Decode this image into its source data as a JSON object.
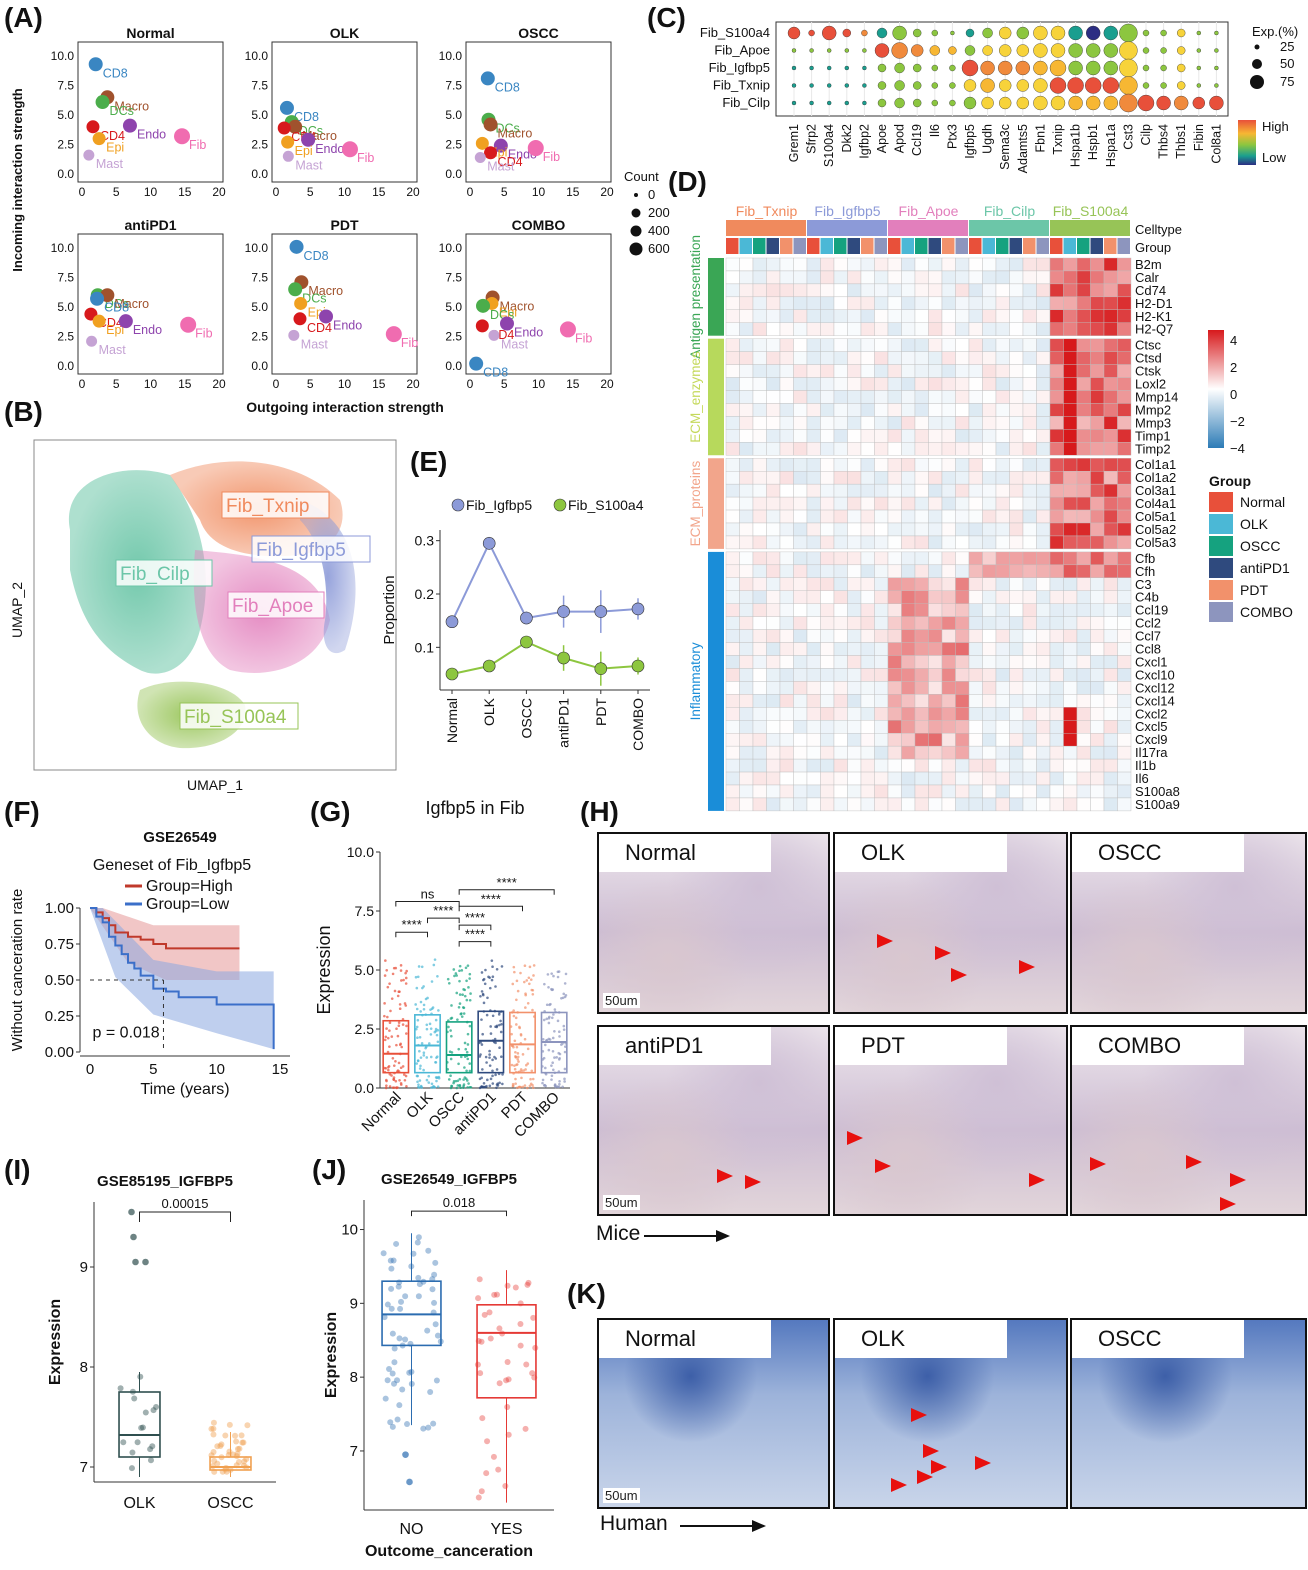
{
  "panel_labels": {
    "A": "(A)",
    "B": "(B)",
    "C": "(C)",
    "D": "(D)",
    "E": "(E)",
    "F": "(F)",
    "G": "(G)",
    "H": "(H)",
    "I": "(I)",
    "J": "(J)",
    "K": "(K)"
  },
  "colors": {
    "cd8": "#3a86c2",
    "macro": "#a0522d",
    "dcs": "#4bad4b",
    "cd4": "#d7191c",
    "epi": "#f0a020",
    "endo": "#8e44ad",
    "fib": "#f06cb0",
    "mast": "#c5a3d4",
    "fib_txnip": "#f08a5d",
    "fib_igfbp5": "#8c9ad8",
    "fib_apoe": "#e27fbc",
    "fib_cilp": "#6cc6a8",
    "fib_s100a4": "#97c457",
    "g_normal": "#e8503a",
    "g_olk": "#4bb8d6",
    "g_oscc": "#15a27f",
    "g_antipd1": "#2f4a7e",
    "g_pdt": "#f2916b",
    "g_combo": "#8d95be"
  },
  "panelA": {
    "xlabel": "Outgoing interaction strength",
    "ylabel": "Incoming interaction strength",
    "xticks": [
      "0",
      "5",
      "10",
      "15",
      "20"
    ],
    "yticks": [
      "0.0",
      "2.5",
      "5.0",
      "7.5",
      "10.0"
    ],
    "legend_title": "Count",
    "legend_values": [
      "0",
      "200",
      "400",
      "600"
    ],
    "chart_data": [
      {
        "type": "scatter",
        "title": "Normal",
        "points": [
          [
            "CD8",
            2.0,
            9.3
          ],
          [
            "Macro",
            3.7,
            6.5
          ],
          [
            "DCs",
            3.0,
            6.1
          ],
          [
            "CD4",
            1.6,
            4.0
          ],
          [
            "Endo",
            7.0,
            4.1
          ],
          [
            "Epi",
            2.5,
            3.0
          ],
          [
            "Fib",
            14.6,
            3.2
          ],
          [
            "Mast",
            1.0,
            1.6
          ]
        ]
      },
      {
        "type": "scatter",
        "title": "OLK",
        "points": [
          [
            "CD8",
            1.6,
            5.6
          ],
          [
            "DCs",
            2.3,
            4.4
          ],
          [
            "Macro",
            2.8,
            4.0
          ],
          [
            "CD4",
            1.2,
            3.9
          ],
          [
            "Endo",
            4.7,
            2.9
          ],
          [
            "Epi",
            1.7,
            2.7
          ],
          [
            "Fib",
            10.8,
            2.1
          ],
          [
            "Mast",
            1.8,
            1.5
          ]
        ]
      },
      {
        "type": "scatter",
        "title": "OSCC",
        "points": [
          [
            "CD8",
            2.6,
            8.1
          ],
          [
            "DCs",
            2.7,
            4.6
          ],
          [
            "Macro",
            3.0,
            4.2
          ],
          [
            "Endo",
            4.5,
            2.4
          ],
          [
            "Epi",
            1.8,
            2.6
          ],
          [
            "Fib",
            9.6,
            2.2
          ],
          [
            "CD4",
            3.0,
            1.8
          ],
          [
            "Mast",
            1.5,
            1.4
          ]
        ]
      },
      {
        "type": "scatter",
        "title": "antiPD1",
        "points": [
          [
            "DCs",
            2.3,
            6.0
          ],
          [
            "Macro",
            3.7,
            6.0
          ],
          [
            "CD8",
            2.2,
            5.7
          ],
          [
            "CD4",
            1.3,
            4.4
          ],
          [
            "Epi",
            2.5,
            3.8
          ],
          [
            "Endo",
            6.4,
            3.8
          ],
          [
            "Fib",
            15.5,
            3.5
          ],
          [
            "Mast",
            1.4,
            2.1
          ]
        ]
      },
      {
        "type": "scatter",
        "title": "PDT",
        "points": [
          [
            "CD8",
            3.0,
            10.1
          ],
          [
            "Macro",
            3.7,
            7.1
          ],
          [
            "DCs",
            2.8,
            6.5
          ],
          [
            "Epi",
            3.6,
            5.3
          ],
          [
            "CD4",
            3.5,
            4.0
          ],
          [
            "Endo",
            7.3,
            4.2
          ],
          [
            "Mast",
            2.6,
            2.6
          ],
          [
            "Fib",
            17.2,
            2.7
          ]
        ]
      },
      {
        "type": "scatter",
        "title": "COMBO",
        "points": [
          [
            "Macro",
            3.3,
            5.8
          ],
          [
            "Epi",
            3.2,
            5.3
          ],
          [
            "DCs",
            1.9,
            5.1
          ],
          [
            "Endo",
            5.4,
            3.6
          ],
          [
            "CD4",
            1.8,
            3.4
          ],
          [
            "Fib",
            14.3,
            3.1
          ],
          [
            "Mast",
            3.5,
            2.6
          ],
          [
            "CD8",
            0.9,
            0.2
          ]
        ]
      }
    ]
  },
  "panelB": {
    "xlabel": "UMAP_1",
    "ylabel": "UMAP_2",
    "clusters": [
      "Fib_Txnip",
      "Fib_Igfbp5",
      "Fib_Cilp",
      "Fib_Apoe",
      "Fib_S100a4"
    ]
  },
  "panelC": {
    "rows": [
      "Fib_S100a4",
      "Fib_Apoe",
      "Fib_Igfbp5",
      "Fib_Txnip",
      "Fib_Cilp"
    ],
    "genes": [
      "Grem1",
      "Sfrp2",
      "S100a4",
      "Dkk2",
      "Igfbp2",
      "Apoe",
      "Apod",
      "Ccl19",
      "Il6",
      "Ptx3",
      "Igfbp5",
      "Ugdh",
      "Sema3c",
      "Adamts5",
      "Fbn1",
      "Txnip",
      "Hspa1b",
      "Hspb1",
      "Hspa1a",
      "Cst3",
      "Cilp",
      "Thbs4",
      "Thbs1",
      "Fibin",
      "Col8a1"
    ],
    "size_legend_title": "Exp.(%)",
    "size_legend": [
      "25",
      "50",
      "75"
    ],
    "color_legend": [
      "High",
      "Low"
    ]
  },
  "panelD": {
    "celltypes": [
      "Fib_Txnip",
      "Fib_Igfbp5",
      "Fib_Apoe",
      "Fib_Cilp",
      "Fib_S100a4"
    ],
    "annot_labels": [
      "Celltype",
      "Group"
    ],
    "modules": [
      {
        "name": "Antigen presentation",
        "genes": [
          "B2m",
          "Calr",
          "Cd74",
          "H2-D1",
          "H2-K1",
          "H2-Q7"
        ]
      },
      {
        "name": "ECM_enzymes",
        "genes": [
          "Ctsc",
          "Ctsd",
          "Ctsk",
          "Loxl2",
          "Mmp14",
          "Mmp2",
          "Mmp3",
          "Timp1",
          "Timp2"
        ]
      },
      {
        "name": "ECM_proteins",
        "genes": [
          "Col1a1",
          "Col1a2",
          "Col3a1",
          "Col4a1",
          "Col5a1",
          "Col5a2",
          "Col5a3"
        ]
      },
      {
        "name": "Inflammatory",
        "genes": [
          "Cfb",
          "Cfh",
          "C3",
          "C4b",
          "Ccl19",
          "Ccl2",
          "Ccl7",
          "Ccl8",
          "Cxcl1",
          "Cxcl10",
          "Cxcl12",
          "Cxcl14",
          "Cxcl2",
          "Cxcl5",
          "Cxcl9",
          "Il17ra",
          "Il1b",
          "Il6",
          "S100a8",
          "S100a9"
        ]
      }
    ],
    "scale": [
      "4",
      "2",
      "0",
      "−2",
      "−4"
    ],
    "group_legend_title": "Group",
    "groups": [
      "Normal",
      "OLK",
      "OSCC",
      "antiPD1",
      "PDT",
      "COMBO"
    ]
  },
  "panelE": {
    "chart_data": {
      "type": "line",
      "categories": [
        "Normal",
        "OLK",
        "OSCC",
        "antiPD1",
        "PDT",
        "COMBO"
      ],
      "series": [
        {
          "name": "Fib_Igfbp5",
          "values": [
            0.148,
            0.295,
            0.155,
            0.167,
            0.167,
            0.172
          ]
        },
        {
          "name": "Fib_S100a4",
          "values": [
            0.05,
            0.065,
            0.11,
            0.08,
            0.06,
            0.065
          ]
        }
      ],
      "ylabel": "Proportion",
      "yticks": [
        "0.1",
        "0.2",
        "0.3"
      ],
      "ylim": [
        0.02,
        0.32
      ]
    }
  },
  "panelF": {
    "chart_data": {
      "type": "line",
      "title": "GSE26549",
      "subtitle": "Geneset of Fib_Igfbp5",
      "series": [
        {
          "name": "Group=High"
        },
        {
          "name": "Group=Low"
        }
      ],
      "xlabel": "Time (years)",
      "ylabel": "Without canceration rate",
      "xticks": [
        "0",
        "5",
        "10",
        "15"
      ],
      "yticks": [
        "0.00",
        "0.25",
        "0.50",
        "0.75",
        "1.00"
      ],
      "annotation": "p = 0.018"
    }
  },
  "panelG": {
    "chart_data": {
      "type": "box",
      "title": "Igfbp5 in Fib",
      "categories": [
        "Normal",
        "OLK",
        "OSCC",
        "antiPD1",
        "PDT",
        "COMBO"
      ],
      "median": [
        1.45,
        1.8,
        1.4,
        2.0,
        1.85,
        1.95
      ],
      "q1": [
        0.65,
        0.65,
        0.65,
        0.65,
        0.65,
        0.65
      ],
      "q3": [
        2.85,
        3.1,
        2.8,
        3.25,
        3.2,
        3.2
      ],
      "ylabel": "Expression",
      "yticks": [
        "0.0",
        "2.5",
        "5.0",
        "7.5",
        "10.0"
      ],
      "ylim": [
        0,
        10
      ],
      "significance": [
        "****",
        "ns",
        "****",
        "****",
        "****",
        "****",
        "****"
      ]
    }
  },
  "panelH": {
    "tags": [
      "Normal",
      "OLK",
      "OSCC",
      "antiPD1",
      "PDT",
      "COMBO"
    ],
    "scalebar": "50um",
    "caption": "Mice"
  },
  "panelI": {
    "chart_data": {
      "type": "box",
      "title": "GSE85195_IGFBP5",
      "categories": [
        "OLK",
        "OSCC"
      ],
      "median": [
        7.32,
        7.0
      ],
      "q1": [
        7.1,
        6.97
      ],
      "q3": [
        7.75,
        7.1
      ],
      "ylabel": "Expression",
      "yticks": [
        "7",
        "8",
        "9"
      ],
      "ylim": [
        6.85,
        9.65
      ],
      "pvalue": "0.00015"
    }
  },
  "panelJ": {
    "chart_data": {
      "type": "box",
      "title": "GSE26549_IGFBP5",
      "categories": [
        "NO",
        "YES"
      ],
      "median": [
        8.85,
        8.6
      ],
      "q1": [
        8.43,
        7.72
      ],
      "q3": [
        9.3,
        8.98
      ],
      "xlabel": "Outcome_canceration",
      "ylabel": "Expression",
      "yticks": [
        "7",
        "8",
        "9",
        "10"
      ],
      "ylim": [
        6.2,
        10.4
      ],
      "pvalue": "0.018"
    }
  },
  "panelK": {
    "tags": [
      "Normal",
      "OLK",
      "OSCC"
    ],
    "scalebar": "50um",
    "caption": "Human"
  }
}
